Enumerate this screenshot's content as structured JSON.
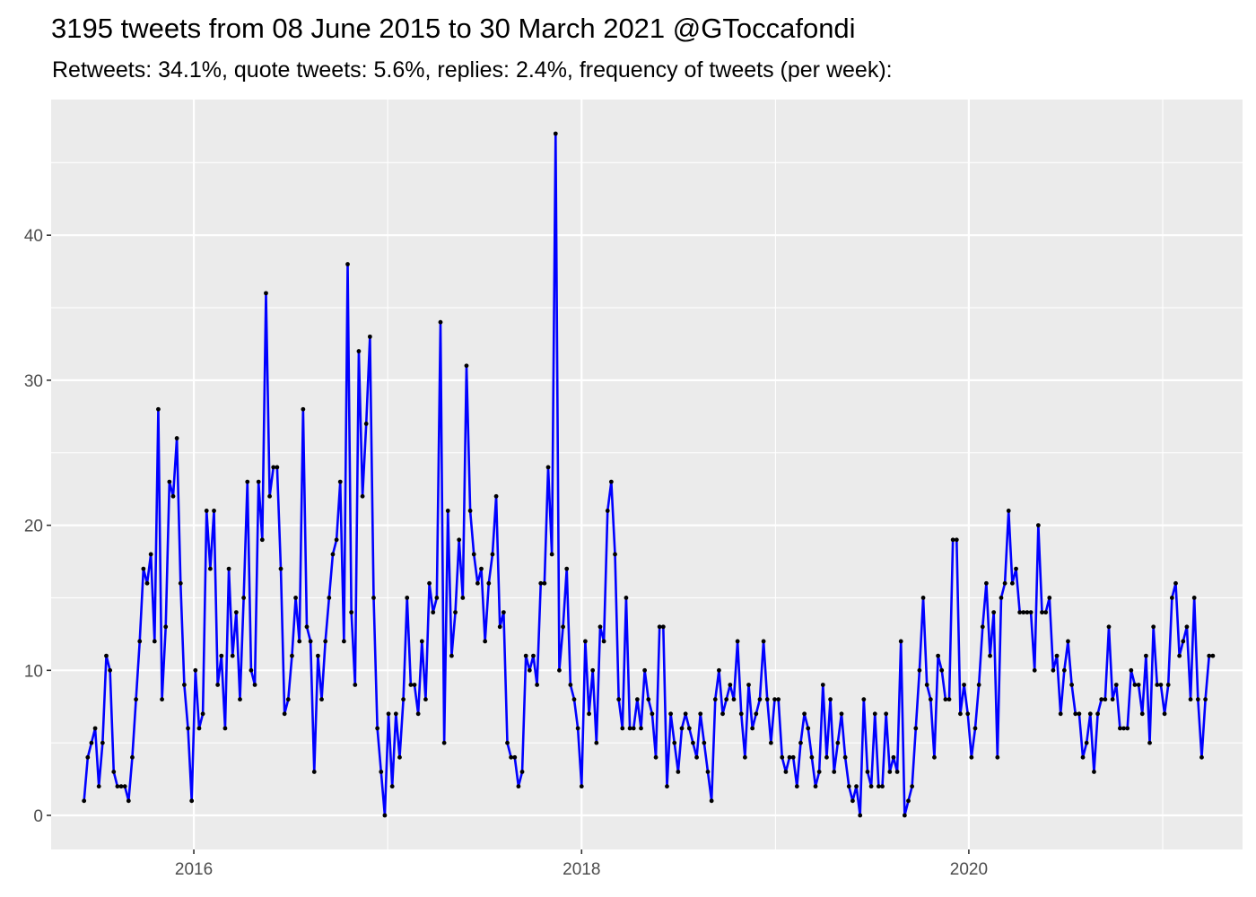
{
  "chart_data": {
    "type": "line",
    "title": "3195 tweets from 08 June 2015 to 30 March 2021 @GToccafondi",
    "subtitle": "Retweets: 34.1%, quote tweets: 5.6%, replies: 2.4%, frequency of tweets (per week):",
    "xlabel": "",
    "ylabel": "",
    "x_start": "2015-06-08",
    "x_interval": "week",
    "xlim": [
      "2015-04-07",
      "2021-05-31"
    ],
    "ylim": [
      -2.35,
      49.35
    ],
    "x_ticks": [
      {
        "label": "2016",
        "date": "2016-01-01"
      },
      {
        "label": "2018",
        "date": "2018-01-01"
      },
      {
        "label": "2020",
        "date": "2020-01-01"
      }
    ],
    "y_ticks": [
      0,
      10,
      20,
      30,
      40
    ],
    "grid": true,
    "legend": "none",
    "colors": {
      "line": "#0000ff",
      "point": "#000000",
      "panel": "#ebebeb",
      "grid": "#ffffff"
    },
    "series": [
      {
        "values": [
          1,
          4,
          5,
          6,
          2,
          5,
          11,
          10,
          3,
          2,
          2,
          2,
          1,
          4,
          8,
          12,
          17,
          16,
          18,
          12,
          28,
          8,
          13,
          23,
          22,
          26,
          16,
          9,
          6,
          1,
          10,
          6,
          7,
          21,
          17,
          21,
          9,
          11,
          6,
          17,
          11,
          14,
          8,
          15,
          23,
          10,
          9,
          23,
          19,
          36,
          22,
          24,
          24,
          17,
          7,
          8,
          11,
          15,
          12,
          28,
          13,
          12,
          3,
          11,
          8,
          12,
          15,
          18,
          19,
          23,
          12,
          38,
          14,
          9,
          32,
          22,
          27,
          33,
          15,
          6,
          3,
          0,
          7,
          2,
          7,
          4,
          8,
          15,
          9,
          9,
          7,
          12,
          8,
          16,
          14,
          15,
          34,
          5,
          21,
          11,
          14,
          19,
          15,
          31,
          21,
          18,
          16,
          17,
          12,
          16,
          18,
          22,
          13,
          14,
          5,
          4,
          4,
          2,
          3,
          11,
          10,
          11,
          9,
          16,
          16,
          24,
          18,
          47,
          10,
          13,
          17,
          9,
          8,
          6,
          2,
          12,
          7,
          10,
          5,
          13,
          12,
          21,
          23,
          18,
          8,
          6,
          15,
          6,
          6,
          8,
          6,
          10,
          8,
          7,
          4,
          13,
          13,
          2,
          7,
          5,
          3,
          6,
          7,
          6,
          5,
          4,
          7,
          5,
          3,
          1,
          8,
          10,
          7,
          8,
          9,
          8,
          12,
          7,
          4,
          9,
          6,
          7,
          8,
          12,
          8,
          5,
          8,
          8,
          4,
          3,
          4,
          4,
          2,
          5,
          7,
          6,
          4,
          2,
          3,
          9,
          4,
          8,
          3,
          5,
          7,
          4,
          2,
          1,
          2,
          0,
          8,
          3,
          2,
          7,
          2,
          2,
          7,
          3,
          4,
          3,
          12,
          0,
          1,
          2,
          6,
          10,
          15,
          9,
          8,
          4,
          11,
          10,
          8,
          8,
          19,
          19,
          7,
          9,
          7,
          4,
          6,
          9,
          13,
          16,
          11,
          14,
          4,
          15,
          16,
          21,
          16,
          17,
          14,
          14,
          14,
          14,
          10,
          20,
          14,
          14,
          15,
          10,
          11,
          7,
          10,
          12,
          9,
          7,
          7,
          4,
          5,
          7,
          3,
          7,
          8,
          8,
          13,
          8,
          9,
          6,
          6,
          6,
          10,
          9,
          9,
          7,
          11,
          5,
          13,
          9,
          9,
          7,
          9,
          15,
          16,
          11,
          12,
          13,
          8,
          15,
          8,
          4,
          8,
          11,
          11
        ]
      }
    ]
  }
}
